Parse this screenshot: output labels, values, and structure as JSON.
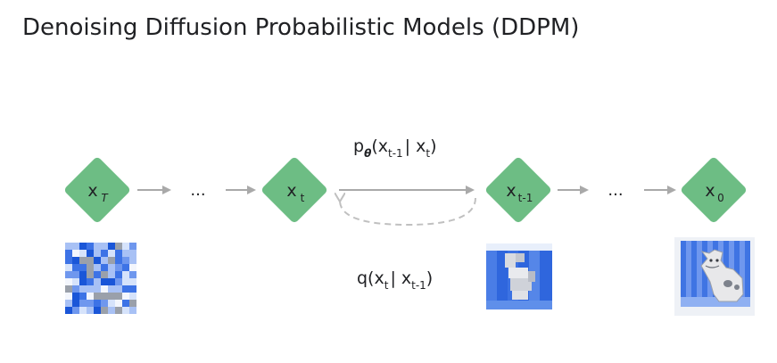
{
  "title": "Denoising Diffusion Probabilistic Models (DDPM)",
  "colors": {
    "node_fill": "#6dbd84",
    "arrow": "#a9a9a9",
    "dashed_arrow": "#c0c0c0",
    "text": "#202124",
    "noise_blues": [
      "#1a56d8",
      "#3d73e6",
      "#6f97ee",
      "#a8c1f5",
      "#d6e3fb",
      "#f3f6fd",
      "#9aa0aa"
    ]
  },
  "nodes": [
    {
      "id": "xT",
      "base": "x",
      "sub": "T",
      "sub_italic": true
    },
    {
      "id": "xt",
      "base": "x",
      "sub": "t",
      "sub_italic": false
    },
    {
      "id": "xt-1",
      "base": "x",
      "sub": "t-1",
      "sub_italic": false
    },
    {
      "id": "x0",
      "base": "x",
      "sub": "0",
      "sub_italic": false
    }
  ],
  "ellipses": [
    "...",
    "..."
  ],
  "reverse_process": {
    "p": "p",
    "theta": "θ",
    "open": "(x",
    "sub1": "t-1",
    "bar": "| x",
    "sub2": "t",
    "close": ")"
  },
  "forward_process": {
    "q": "q(x",
    "sub1": "t",
    "bar": "| x",
    "sub2": "t-1",
    "close": ")"
  },
  "thumbnails": [
    "noise-image",
    "partially-denoised-image",
    "clean-dog-image"
  ]
}
